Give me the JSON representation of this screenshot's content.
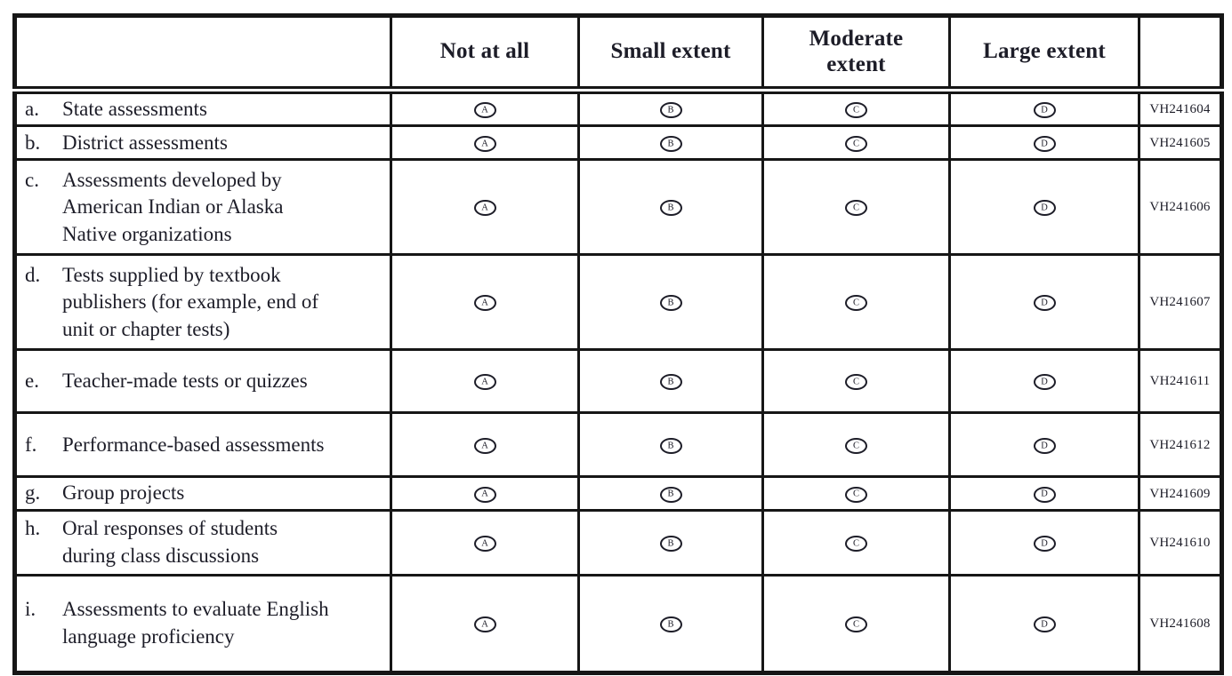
{
  "table": {
    "corner_header": "",
    "code_column_header": "",
    "columns": [
      "Not at all",
      "Small extent",
      "Moderate extent",
      "Large extent"
    ],
    "options": [
      "A",
      "B",
      "C",
      "D"
    ],
    "rows": [
      {
        "letter": "a.",
        "label": "State assessments",
        "code": "VH241604"
      },
      {
        "letter": "b.",
        "label": "District assessments",
        "code": "VH241605"
      },
      {
        "letter": "c.",
        "label": "Assessments developed by American Indian or Alaska Native organizations",
        "code": "VH241606"
      },
      {
        "letter": "d.",
        "label": "Tests supplied by textbook publishers (for example, end of unit or chapter tests)",
        "code": "VH241607"
      },
      {
        "letter": "e.",
        "label": "Teacher-made tests or quizzes",
        "code": "VH241611"
      },
      {
        "letter": "f.",
        "label": "Performance-based assessments",
        "code": "VH241612"
      },
      {
        "letter": "g.",
        "label": "Group projects",
        "code": "VH241609"
      },
      {
        "letter": "h.",
        "label": "Oral responses of students during class discussions",
        "code": "VH241610"
      },
      {
        "letter": "i.",
        "label": "Assessments to evaluate English language proficiency",
        "code": "VH241608"
      }
    ],
    "colors": {
      "border": "#161616",
      "text": "#1d1d28",
      "background": "#ffffff"
    }
  }
}
